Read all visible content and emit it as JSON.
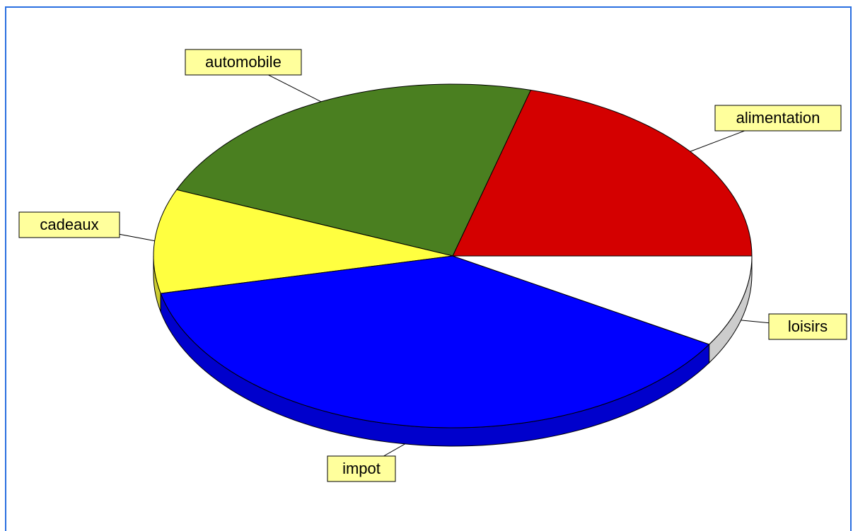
{
  "chart_data": {
    "type": "pie",
    "categories": [
      "alimentation",
      "automobile",
      "cadeaux",
      "impot",
      "loisirs"
    ],
    "values": [
      20.8,
      22.9,
      9.8,
      37.9,
      8.6
    ],
    "colors": [
      "#d40000",
      "#4a7f20",
      "#ffff40",
      "#0000ff",
      "#ffffff"
    ]
  }
}
